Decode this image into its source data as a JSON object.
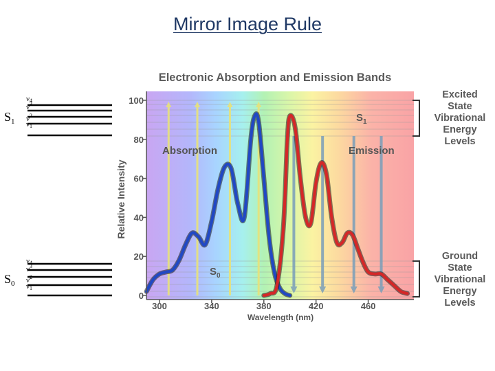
{
  "slide": {
    "title": "Mirror Image Rule"
  },
  "jablonski": {
    "states": [
      {
        "name": "S",
        "sub": "1",
        "levels": [
          "4",
          "3",
          "2",
          "1"
        ]
      },
      {
        "name": "S",
        "sub": "0",
        "levels": [
          "4",
          "3",
          "2",
          "1"
        ]
      }
    ],
    "level_symbol": "ν"
  },
  "chart_data": {
    "type": "line",
    "title": "Electronic Absorption and Emission Bands",
    "xlabel": "Wavelength (nm)",
    "ylabel": "Relative Intensity",
    "xlim": [
      290,
      495
    ],
    "ylim": [
      0,
      100
    ],
    "x_ticks": [
      "300",
      "340",
      "380",
      "420",
      "460"
    ],
    "y_ticks": [
      "0",
      "20",
      "40",
      "60",
      "80",
      "100"
    ],
    "series": [
      {
        "name": "Absorption",
        "color": "#2148c4",
        "x": [
          290,
          295,
          300,
          305,
          310,
          315,
          320,
          325,
          330,
          335,
          340,
          345,
          350,
          355,
          360,
          365,
          370,
          373,
          376,
          380,
          384,
          388,
          392,
          396,
          400
        ],
        "y": [
          2,
          8,
          11,
          12,
          13,
          18,
          26,
          32,
          30,
          26,
          38,
          55,
          66,
          65,
          47,
          40,
          80,
          92,
          89,
          60,
          30,
          12,
          4,
          1,
          0
        ]
      },
      {
        "name": "Emission",
        "color": "#d42828",
        "x": [
          380,
          385,
          390,
          395,
          398,
          400,
          404,
          408,
          412,
          416,
          420,
          424,
          428,
          432,
          436,
          440,
          444,
          448,
          452,
          456,
          460,
          465,
          470,
          475,
          480,
          485,
          490
        ],
        "y": [
          0,
          1,
          5,
          35,
          80,
          92,
          86,
          60,
          40,
          37,
          58,
          68,
          62,
          40,
          27,
          27,
          32,
          31,
          24,
          17,
          12,
          11,
          11,
          8,
          5,
          2,
          1
        ]
      }
    ],
    "annotations": [
      "Absorption",
      "Emission",
      "S",
      "1",
      "S",
      "0"
    ],
    "absorption_arrow_x": [
      307,
      329,
      354,
      376
    ],
    "emission_arrow_x": [
      403,
      425,
      449,
      470
    ],
    "side_labels": {
      "excited": [
        "Excited",
        "State",
        "Vibrational",
        "Energy",
        "Levels"
      ],
      "ground": [
        "Ground",
        "State",
        "Vibrational",
        "Energy",
        "Levels"
      ]
    },
    "grid": false,
    "background": "visible-spectrum gradient (violet to red)"
  }
}
